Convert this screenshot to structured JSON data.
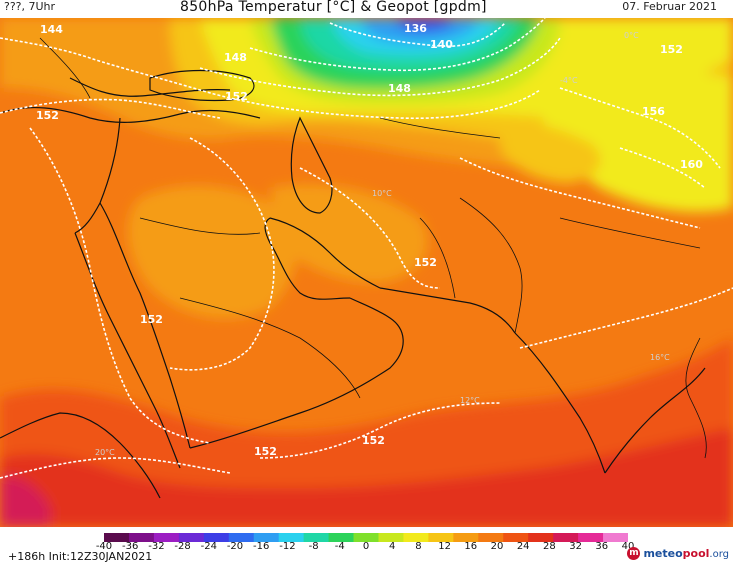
{
  "header": {
    "left_text": "???, 7Uhr",
    "title": "850hPa Temperatur [°C] & Geopot [gpdm]",
    "date": "07. Februar 2021"
  },
  "footer": {
    "run_info": "+186h Init:12Z30JAN2021",
    "logo_part1": "meteo",
    "logo_part2": "pool",
    "logo_part3": ".org"
  },
  "legend": {
    "ticks": [
      "-40",
      "-36",
      "-32",
      "-28",
      "-24",
      "-20",
      "-16",
      "-12",
      "-8",
      "-4",
      "0",
      "4",
      "8",
      "12",
      "16",
      "20",
      "24",
      "28",
      "32",
      "36",
      "40"
    ],
    "colors": [
      "#5a0b4d",
      "#7d0f8a",
      "#9c1ec3",
      "#6b2ad6",
      "#3d3ee6",
      "#2f6cf0",
      "#2f9ef2",
      "#2ad1ee",
      "#1fd7a6",
      "#2cd35a",
      "#7fe02b",
      "#c8e81e",
      "#f2ea1d",
      "#f6c515",
      "#f59c12",
      "#f47a12",
      "#ef5413",
      "#e3321b",
      "#d41a57",
      "#e52a97",
      "#f07ad0"
    ]
  },
  "contours": [
    {
      "label": "136"
    },
    {
      "label": "140"
    },
    {
      "label": "144"
    },
    {
      "label": "148"
    },
    {
      "label": "148"
    },
    {
      "label": "152"
    },
    {
      "label": "152"
    },
    {
      "label": "152"
    },
    {
      "label": "152"
    },
    {
      "label": "152"
    },
    {
      "label": "152"
    },
    {
      "label": "152"
    },
    {
      "label": "156"
    },
    {
      "label": "160"
    }
  ],
  "temp_labels": [
    "10°C",
    "16°C",
    "20°C",
    "0°C",
    "-4°C",
    "12°C"
  ],
  "colors": {
    "orange": "#f47a12",
    "light_orange": "#f59c12",
    "amber": "#f6c515",
    "yellow": "#f2ea1d",
    "lime": "#c8e81e",
    "green": "#2cd35a",
    "cyan": "#2ad1ee",
    "blue": "#2f6cf0",
    "red_orange": "#ef5413",
    "red": "#e3321b",
    "magenta": "#d41a57"
  }
}
